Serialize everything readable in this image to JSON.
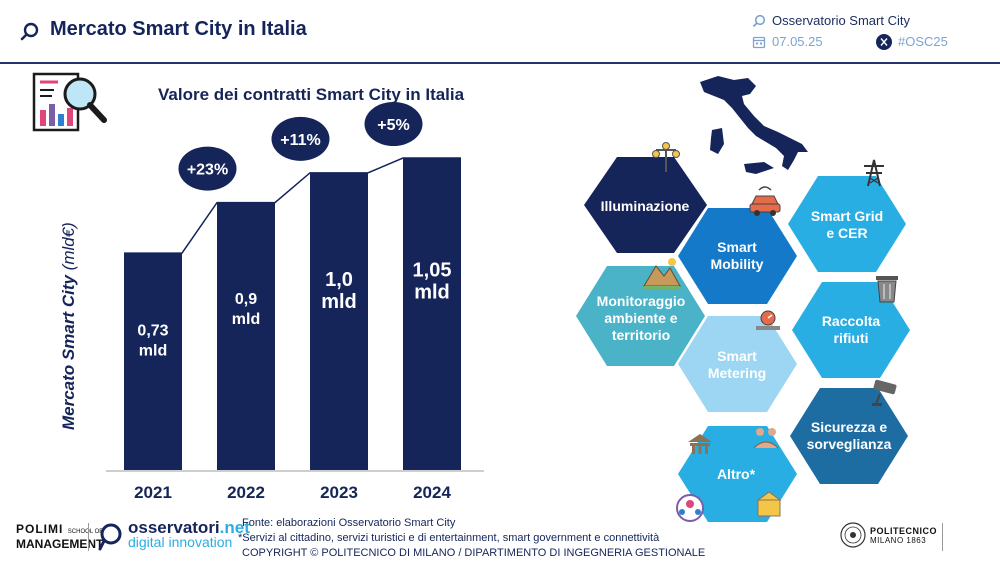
{
  "header": {
    "title": "Mercato Smart City in Italia",
    "org": "Osservatorio Smart City",
    "date": "07.05.25",
    "hashtag": "#OSC25"
  },
  "chart_data": {
    "type": "bar",
    "title": "Valore dei contratti Smart City in Italia",
    "ylabel": "Mercato Smart City (mld€)",
    "ylabel_main": "Mercato Smart City",
    "ylabel_unit": "(mld€)",
    "categories": [
      "2021",
      "2022",
      "2023",
      "2024"
    ],
    "values": [
      0.73,
      0.9,
      1.0,
      1.05
    ],
    "value_labels": [
      "0,73 mld",
      "0,9 mld",
      "1,0 mld",
      "1,05 mld"
    ],
    "growth_labels": [
      "+23%",
      "+11%",
      "+5%"
    ],
    "ylim": [
      0,
      1.05
    ],
    "grid": false,
    "bar_color": "#15255a"
  },
  "sectors": {
    "colors": {
      "dark": "#15255a",
      "mid": "#1479c8",
      "sky": "#29aee4",
      "teal": "#4ab3c7",
      "pale": "#9dd6f3",
      "steel": "#1d6da3"
    },
    "items": [
      {
        "label": "Illuminazione",
        "icon": "street-lamp-icon"
      },
      {
        "label": "Smart Mobility",
        "icon": "connected-car-icon"
      },
      {
        "label": "Smart Grid e CER",
        "icon": "power-pylon-icon"
      },
      {
        "label": "Monitoraggio ambiente e territorio",
        "icon": "mountain-landscape-icon"
      },
      {
        "label": "Smart Metering",
        "icon": "meter-icon"
      },
      {
        "label": "Raccolta rifiuti",
        "icon": "trash-bin-icon"
      },
      {
        "label": "Sicurezza e sorveglianza",
        "icon": "cctv-camera-icon"
      },
      {
        "label": "Altro*",
        "icon": "civic-services-icons"
      }
    ]
  },
  "footer": {
    "source": "Fonte: elaborazioni Osservatorio Smart City",
    "note": "*Servizi al cittadino, servizi turistici e di entertainment, smart government e connettività",
    "copyright": "COPYRIGHT © POLITECNICO DI MILANO / DIPARTIMENTO DI INGEGNERIA GESTIONALE",
    "polimi_line1": "POLIMI",
    "polimi_school": "SCHOOL OF",
    "polimi_line2": "MANAGEMENT",
    "osservatori_main": "osservatori",
    "osservatori_tld": ".net",
    "osservatori_sub": "digital innovation",
    "politecnico_name": "POLITECNICO",
    "politecnico_city": "MILANO 1863"
  }
}
